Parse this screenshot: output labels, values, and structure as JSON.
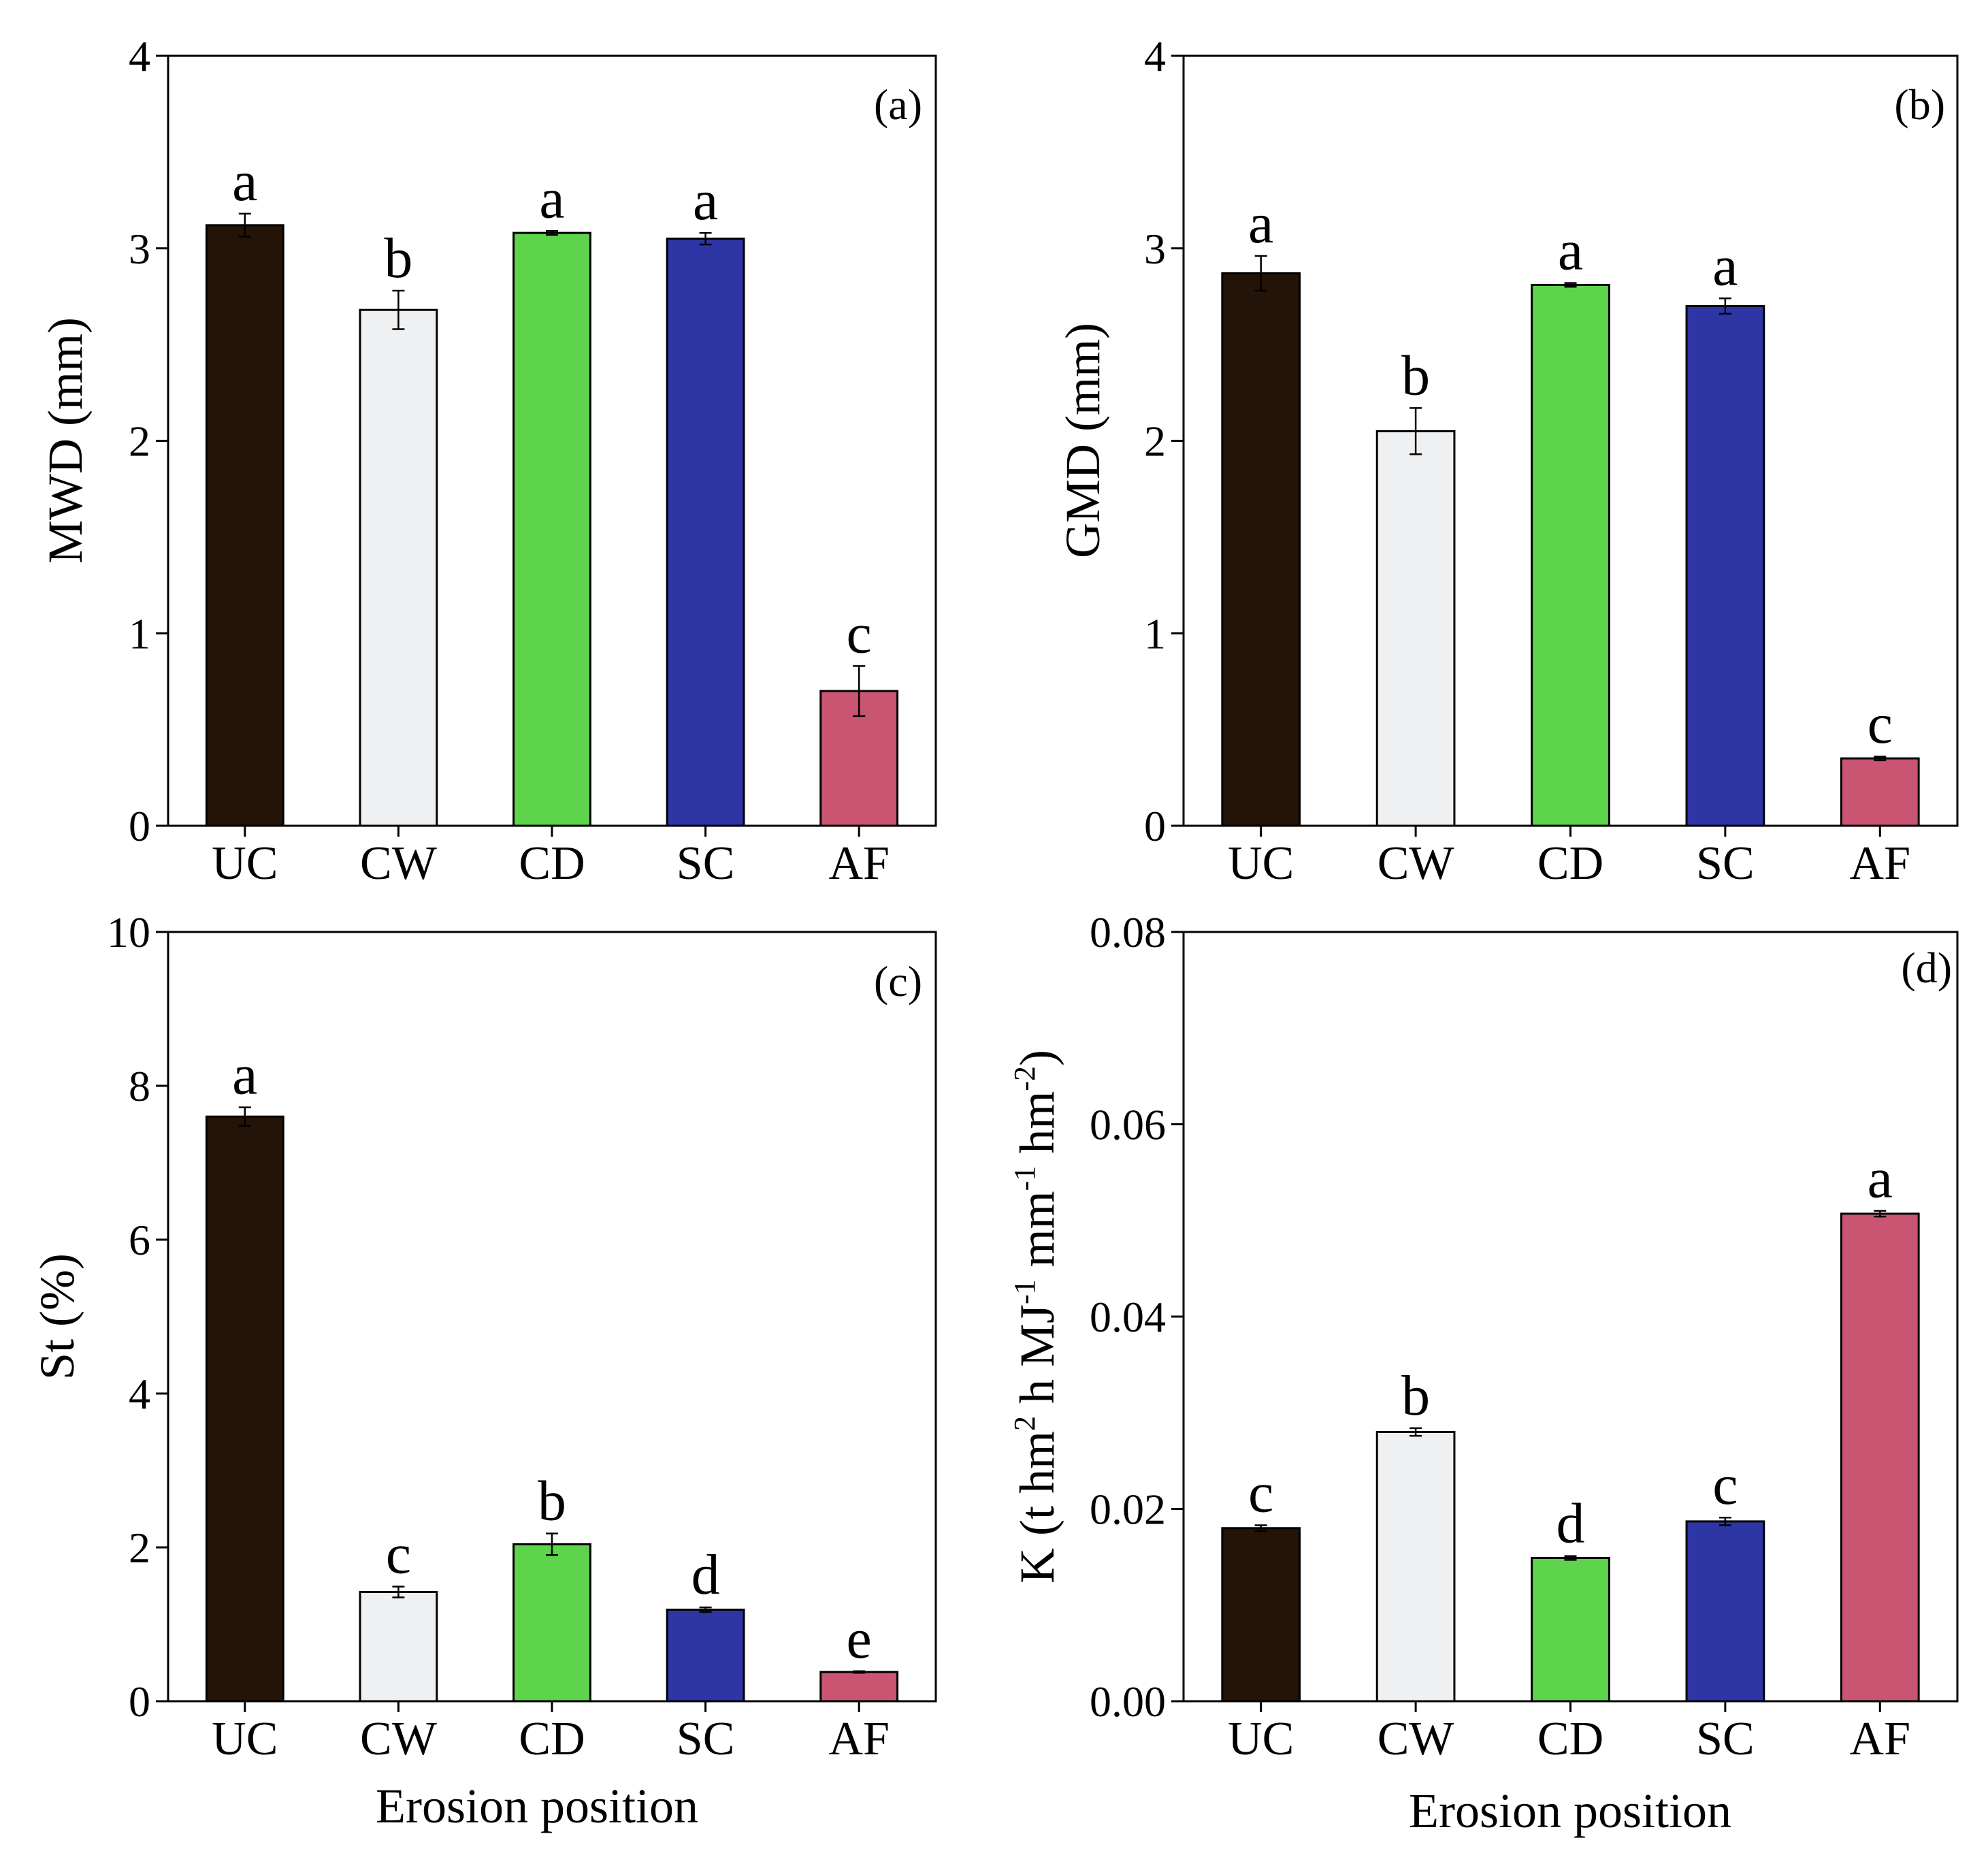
{
  "figure": {
    "xlabel": "Erosion position",
    "categories": [
      "UC",
      "CW",
      "CD",
      "SC",
      "AF"
    ],
    "colors": [
      "#241407",
      "#eff0f2",
      "#5dd44b",
      "#2e36a6",
      "#c95572"
    ]
  },
  "chart_data": [
    {
      "type": "bar",
      "panel": "(a)",
      "title": "",
      "ylabel": "MWD (mm)",
      "xlabel": "",
      "categories": [
        "UC",
        "CW",
        "CD",
        "SC",
        "AF"
      ],
      "values": [
        3.12,
        2.68,
        3.08,
        3.05,
        0.7
      ],
      "errors": [
        0.06,
        0.1,
        0.01,
        0.03,
        0.13
      ],
      "letters": [
        "a",
        "b",
        "a",
        "a",
        "c"
      ],
      "ylim": [
        0,
        4
      ],
      "yticks": [
        0,
        1,
        2,
        3,
        4
      ],
      "ytick_labels": [
        "0",
        "1",
        "2",
        "3",
        "4"
      ]
    },
    {
      "type": "bar",
      "panel": "(b)",
      "title": "",
      "ylabel": "GMD (mm)",
      "xlabel": "",
      "categories": [
        "UC",
        "CW",
        "CD",
        "SC",
        "AF"
      ],
      "values": [
        2.87,
        2.05,
        2.81,
        2.7,
        0.35
      ],
      "errors": [
        0.09,
        0.12,
        0.01,
        0.04,
        0.01
      ],
      "letters": [
        "a",
        "b",
        "a",
        "a",
        "c"
      ],
      "ylim": [
        0,
        4
      ],
      "yticks": [
        0,
        1,
        2,
        3,
        4
      ],
      "ytick_labels": [
        "0",
        "1",
        "2",
        "3",
        "4"
      ]
    },
    {
      "type": "bar",
      "panel": "(c)",
      "title": "",
      "ylabel": "St (%)",
      "xlabel": "Erosion position",
      "categories": [
        "UC",
        "CW",
        "CD",
        "SC",
        "AF"
      ],
      "values": [
        7.6,
        1.42,
        2.04,
        1.19,
        0.38
      ],
      "errors": [
        0.12,
        0.07,
        0.14,
        0.03,
        0.01
      ],
      "letters": [
        "a",
        "c",
        "b",
        "d",
        "e"
      ],
      "ylim": [
        0,
        10
      ],
      "yticks": [
        0,
        2,
        4,
        6,
        8,
        10
      ],
      "ytick_labels": [
        "0",
        "2",
        "4",
        "6",
        "8",
        "10"
      ]
    },
    {
      "type": "bar",
      "panel": "(d)",
      "title": "",
      "ylabel": "K (t hm² h MJ⁻¹ mm⁻¹ hm⁻²)",
      "ylabel_parts": [
        "K (t hm",
        "2",
        " h MJ",
        "-1",
        " mm",
        "-1",
        " hm",
        "-2",
        ")"
      ],
      "xlabel": "Erosion position",
      "categories": [
        "UC",
        "CW",
        "CD",
        "SC",
        "AF"
      ],
      "values": [
        0.018,
        0.028,
        0.0149,
        0.0187,
        0.0507
      ],
      "errors": [
        0.0003,
        0.0004,
        0.0002,
        0.0004,
        0.0003
      ],
      "letters": [
        "c",
        "b",
        "d",
        "c",
        "a"
      ],
      "ylim": [
        0,
        0.08
      ],
      "yticks": [
        0,
        0.02,
        0.04,
        0.06,
        0.08
      ],
      "ytick_labels": [
        "0.00",
        "0.02",
        "0.04",
        "0.06",
        "0.08"
      ]
    }
  ]
}
